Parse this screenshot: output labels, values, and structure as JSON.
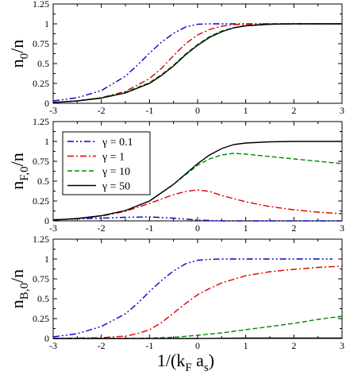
{
  "chart_data": [
    {
      "type": "line",
      "panel": "top",
      "ylabel": {
        "main": "n",
        "sub": "0",
        "tail": "/n"
      },
      "xlim": [
        -3,
        3
      ],
      "ylim": [
        0,
        1.25
      ],
      "xticks": [
        "-3",
        "-2",
        "-1",
        "0",
        "1",
        "2",
        "3"
      ],
      "yticks": [
        "0",
        "0.25",
        "0.5",
        "0.75",
        "1",
        "1.25"
      ],
      "grid": false,
      "series": [
        {
          "style": "dashdotdot",
          "color": "#0000cc",
          "x": [
            -3.0,
            -2.5,
            -2.0,
            -1.5,
            -1.25,
            -1.0,
            -0.75,
            -0.5,
            -0.25,
            0.0,
            0.25,
            0.5,
            1.0,
            1.5,
            2.0,
            2.5,
            3.0
          ],
          "y": [
            0.03,
            0.07,
            0.16,
            0.34,
            0.48,
            0.63,
            0.77,
            0.88,
            0.96,
            0.995,
            1.0,
            1.0,
            1.0,
            1.0,
            1.0,
            1.0,
            1.0
          ]
        },
        {
          "style": "dashdot",
          "color": "#dd0000",
          "x": [
            -3.0,
            -2.5,
            -2.0,
            -1.5,
            -1.0,
            -0.75,
            -0.5,
            -0.25,
            0.0,
            0.25,
            0.5,
            0.75,
            1.0,
            1.5,
            2.0,
            2.5,
            3.0
          ],
          "y": [
            0.01,
            0.03,
            0.07,
            0.15,
            0.31,
            0.44,
            0.6,
            0.75,
            0.86,
            0.93,
            0.97,
            0.99,
            0.995,
            1.0,
            1.0,
            1.0,
            1.0
          ]
        },
        {
          "style": "dashed",
          "color": "#008800",
          "x": [
            -3.0,
            -2.5,
            -2.0,
            -1.5,
            -1.0,
            -0.75,
            -0.5,
            -0.25,
            0.0,
            0.25,
            0.5,
            0.75,
            1.0,
            1.5,
            2.0,
            2.5,
            3.0
          ],
          "y": [
            0.01,
            0.03,
            0.07,
            0.14,
            0.26,
            0.36,
            0.48,
            0.62,
            0.74,
            0.84,
            0.91,
            0.95,
            0.98,
            0.995,
            1.0,
            1.0,
            1.0
          ]
        },
        {
          "style": "solid",
          "color": "#000000",
          "x": [
            -3.0,
            -2.5,
            -2.0,
            -1.5,
            -1.0,
            -0.75,
            -0.5,
            -0.25,
            0.0,
            0.25,
            0.5,
            0.75,
            1.0,
            1.5,
            2.0,
            2.5,
            3.0
          ],
          "y": [
            0.01,
            0.03,
            0.065,
            0.13,
            0.25,
            0.35,
            0.47,
            0.61,
            0.73,
            0.83,
            0.9,
            0.95,
            0.975,
            0.995,
            1.0,
            1.0,
            1.0
          ]
        }
      ]
    },
    {
      "type": "line",
      "panel": "middle",
      "ylabel": {
        "main": "n",
        "sub": "F,0",
        "tail": "/n"
      },
      "xlim": [
        -3,
        3
      ],
      "ylim": [
        0,
        1.25
      ],
      "xticks": [
        "-3",
        "-2",
        "-1",
        "0",
        "1",
        "2",
        "3"
      ],
      "yticks": [
        "0",
        "0.25",
        "0.5",
        "0.75",
        "1",
        "1.25"
      ],
      "grid": false,
      "legend": {
        "position": "upper-left",
        "entries": [
          "γ = 0.1",
          "γ = 1",
          "γ = 10",
          "γ = 50"
        ]
      },
      "series": [
        {
          "name": "γ = 0.1",
          "style": "dashdotdot",
          "color": "#0000cc",
          "x": [
            -3.0,
            -2.0,
            -1.5,
            -1.0,
            -0.5,
            0.0,
            0.5,
            1.0,
            2.0,
            3.0
          ],
          "y": [
            0.015,
            0.035,
            0.045,
            0.05,
            0.035,
            0.01,
            0.0,
            0.0,
            0.0,
            0.0
          ]
        },
        {
          "name": "γ = 1",
          "style": "dashdot",
          "color": "#dd0000",
          "x": [
            -3.0,
            -2.5,
            -2.0,
            -1.5,
            -1.0,
            -0.5,
            -0.25,
            0.0,
            0.25,
            0.5,
            1.0,
            1.5,
            2.0,
            2.5,
            3.0
          ],
          "y": [
            0.01,
            0.03,
            0.06,
            0.12,
            0.22,
            0.33,
            0.37,
            0.39,
            0.37,
            0.32,
            0.24,
            0.18,
            0.14,
            0.11,
            0.09
          ]
        },
        {
          "name": "γ = 10",
          "style": "dashed",
          "color": "#008800",
          "x": [
            -3.0,
            -2.5,
            -2.0,
            -1.5,
            -1.0,
            -0.5,
            0.0,
            0.25,
            0.5,
            0.75,
            1.0,
            1.5,
            2.0,
            2.5,
            3.0
          ],
          "y": [
            0.01,
            0.03,
            0.065,
            0.13,
            0.25,
            0.46,
            0.7,
            0.78,
            0.83,
            0.85,
            0.84,
            0.81,
            0.78,
            0.75,
            0.72
          ]
        },
        {
          "name": "γ = 50",
          "style": "solid",
          "color": "#000000",
          "x": [
            -3.0,
            -2.5,
            -2.0,
            -1.5,
            -1.0,
            -0.5,
            0.0,
            0.25,
            0.5,
            0.75,
            1.0,
            1.5,
            2.0,
            2.5,
            3.0
          ],
          "y": [
            0.01,
            0.03,
            0.065,
            0.13,
            0.25,
            0.46,
            0.72,
            0.83,
            0.91,
            0.96,
            0.98,
            0.995,
            1.0,
            1.0,
            1.0
          ]
        }
      ]
    },
    {
      "type": "line",
      "panel": "bottom",
      "ylabel": {
        "main": "n",
        "sub": "B,0",
        "tail": "/n"
      },
      "xlabel": {
        "main": "1/(k",
        "sub1": "F",
        "mid": " a",
        "sub2": "s",
        "tail": ")"
      },
      "xlim": [
        -3,
        3
      ],
      "ylim": [
        0,
        1.25
      ],
      "xticks": [
        "-3",
        "-2",
        "-1",
        "0",
        "1",
        "2",
        "3"
      ],
      "yticks": [
        "0",
        "0.25",
        "0.5",
        "0.75",
        "1",
        "1.25"
      ],
      "grid": false,
      "series": [
        {
          "style": "dashdotdot",
          "color": "#0000cc",
          "x": [
            -3.0,
            -2.5,
            -2.0,
            -1.5,
            -1.25,
            -1.0,
            -0.75,
            -0.5,
            -0.25,
            0.0,
            0.25,
            0.5,
            1.0,
            1.5,
            2.0,
            2.5,
            2.8
          ],
          "y": [
            0.02,
            0.06,
            0.15,
            0.31,
            0.44,
            0.59,
            0.73,
            0.85,
            0.94,
            0.985,
            0.995,
            1.0,
            1.0,
            1.0,
            1.0,
            1.0,
            1.0
          ]
        },
        {
          "style": "dashdot",
          "color": "#dd0000",
          "x": [
            -3.0,
            -2.0,
            -1.5,
            -1.25,
            -1.0,
            -0.75,
            -0.5,
            -0.25,
            0.0,
            0.25,
            0.5,
            1.0,
            1.5,
            2.0,
            2.5,
            3.0
          ],
          "y": [
            0.0,
            0.01,
            0.03,
            0.06,
            0.11,
            0.2,
            0.32,
            0.44,
            0.55,
            0.63,
            0.7,
            0.79,
            0.84,
            0.87,
            0.895,
            0.91
          ]
        },
        {
          "style": "dashed",
          "color": "#008800",
          "x": [
            -3.0,
            -2.0,
            -1.5,
            -1.0,
            -0.5,
            0.0,
            0.5,
            1.0,
            1.5,
            2.0,
            2.5,
            3.0
          ],
          "y": [
            0.0,
            0.0,
            0.0,
            0.005,
            0.015,
            0.04,
            0.07,
            0.11,
            0.15,
            0.19,
            0.24,
            0.28
          ]
        },
        {
          "style": "solid",
          "color": "#000000",
          "x": [
            -3.0,
            0.0,
            1.0,
            2.0,
            3.0
          ],
          "y": [
            0.0,
            0.0,
            0.005,
            0.005,
            0.005
          ]
        }
      ]
    }
  ]
}
